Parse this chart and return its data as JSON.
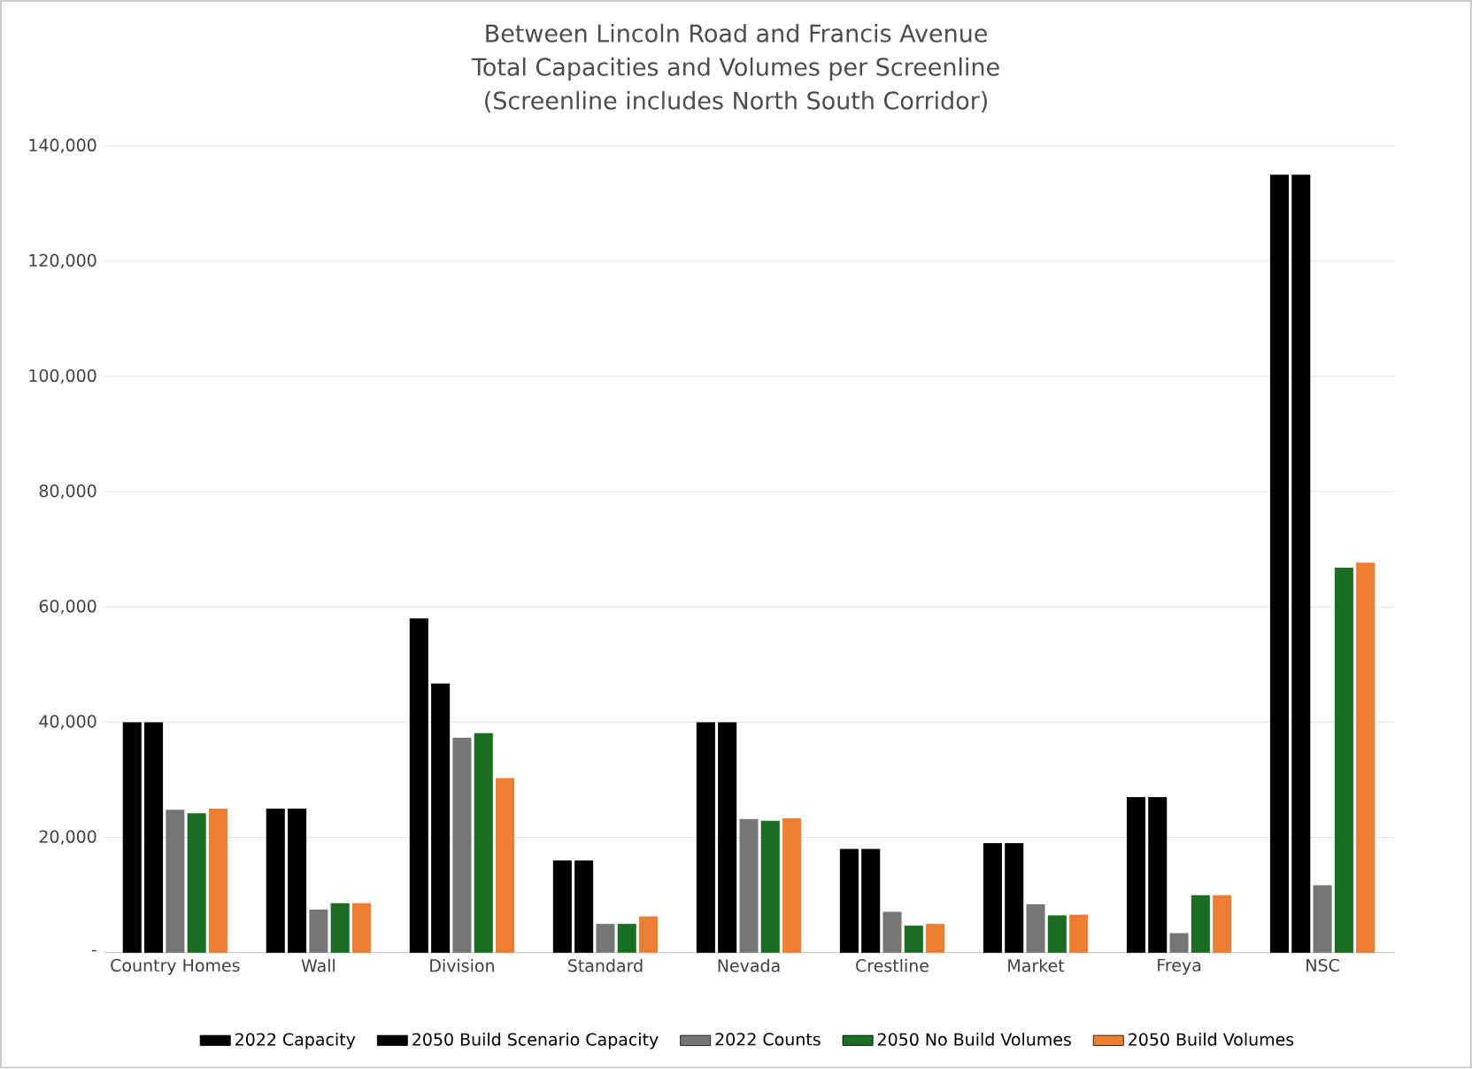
{
  "chart_data": {
    "type": "bar",
    "title": "Between Lincoln Road and Francis Avenue\nTotal Capacities and Volumes per Screenline\n (Screenline includes North South Corridor)",
    "categories": [
      "Country Homes",
      "Wall",
      "Division",
      "Standard",
      "Nevada",
      "Crestline",
      "Market",
      "Freya",
      "NSC"
    ],
    "series": [
      {
        "name": "2022 Capacity",
        "color": "#000000",
        "values": [
          40000,
          25000,
          58000,
          16000,
          40000,
          18000,
          19000,
          27000,
          135000
        ]
      },
      {
        "name": "2050 Build Scenario Capacity",
        "color": "#000000",
        "values": [
          40000,
          25000,
          46700,
          16000,
          40000,
          18000,
          19000,
          27000,
          135000
        ]
      },
      {
        "name": "2022 Counts",
        "color": "#767676",
        "values": [
          24800,
          7500,
          37300,
          5000,
          23200,
          7100,
          8400,
          3400,
          11700
        ]
      },
      {
        "name": "2050 No Build Volumes",
        "color": "#1a6e23",
        "values": [
          24200,
          8600,
          38100,
          5000,
          22900,
          4700,
          6500,
          10000,
          66800
        ]
      },
      {
        "name": "2050 Build Volumes",
        "color": "#ed7d31",
        "values": [
          25000,
          8600,
          30300,
          6300,
          23300,
          5000,
          6600,
          10000,
          67700
        ]
      }
    ],
    "ylim": [
      0,
      140000
    ],
    "yticks": [
      {
        "value": 0,
        "label": "-"
      },
      {
        "value": 20000,
        "label": "20,000"
      },
      {
        "value": 40000,
        "label": "40,000"
      },
      {
        "value": 60000,
        "label": "60,000"
      },
      {
        "value": 80000,
        "label": "80,000"
      },
      {
        "value": 100000,
        "label": "100,000"
      },
      {
        "value": 120000,
        "label": "120,000"
      },
      {
        "value": 140000,
        "label": "140,000"
      }
    ],
    "grid": "y",
    "legend": "bottom"
  }
}
